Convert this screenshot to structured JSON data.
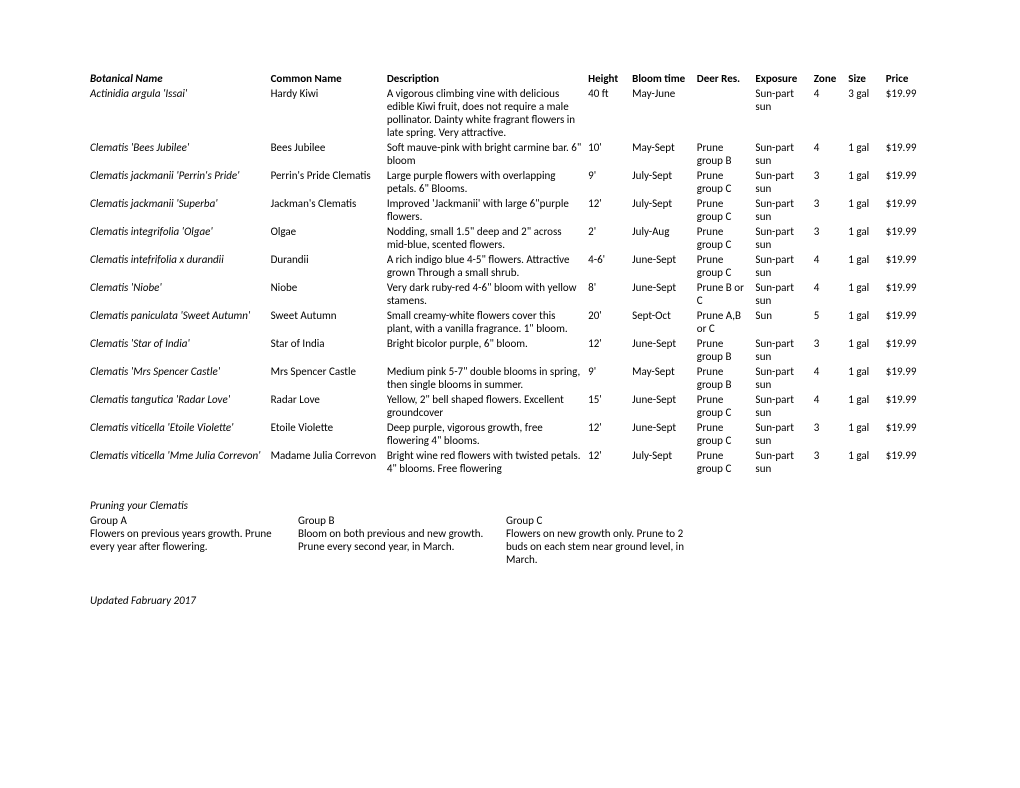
{
  "columns": {
    "botanical": "Botanical Name",
    "common": "Common Name",
    "description": "Description",
    "height": "Height",
    "bloom": "Bloom time",
    "deer": "Deer Res.",
    "exposure": "Exposure",
    "zone": "Zone",
    "size": "Size",
    "price": "Price"
  },
  "rows": [
    {
      "botanical": "Actinidia argula 'Issai'",
      "common": "Hardy Kiwi",
      "desc": "A vigorous climbing vine with delicious edible Kiwi fruit, does not require a male pollinator. Dainty white fragrant flowers in late spring. Very attractive.",
      "height": "40 ft",
      "bloom": "May-June",
      "deer": "",
      "exposure": "Sun-part sun",
      "zone": "4",
      "size": "3 gal",
      "price": "$19.99"
    },
    {
      "botanical": "Clematis 'Bees Jubilee'",
      "common": "Bees Jubilee",
      "desc": "Soft mauve-pink with bright carmine bar. 6\" bloom",
      "height": "10'",
      "bloom": "May-Sept",
      "deer": "Prune group B",
      "exposure": "Sun-part sun",
      "zone": "4",
      "size": "1 gal",
      "price": "$19.99"
    },
    {
      "botanical": "Clematis jackmanii 'Perrin's Pride'",
      "common": "Perrin's Pride Clematis",
      "desc": "Large purple flowers with overlapping petals. 6\" Blooms.",
      "height": "9'",
      "bloom": "July-Sept",
      "deer": "Prune group C",
      "exposure": "Sun-part sun",
      "zone": "3",
      "size": "1 gal",
      "price": "$19.99"
    },
    {
      "botanical": "Clematis jackmanii 'Superba'",
      "common": "Jackman's Clematis",
      "desc": "Improved 'Jackmanii' with large 6\"purple flowers.",
      "height": "12'",
      "bloom": "July-Sept",
      "deer": "Prune group C",
      "exposure": "Sun-part sun",
      "zone": "3",
      "size": "1 gal",
      "price": "$19.99"
    },
    {
      "botanical": " Clematis integrifolia 'Olgae'",
      "common": "Olgae",
      "desc": "Nodding, small 1.5\" deep and 2\" across mid-blue, scented flowers.",
      "height": "2'",
      "bloom": "July-Aug",
      "deer": "Prune group C",
      "exposure": "Sun-part sun",
      "zone": "3",
      "size": "1 gal",
      "price": "$19.99"
    },
    {
      "botanical": "Clematis intefrifolia x durandii",
      "common": "Durandii",
      "desc": "A rich indigo blue 4-5\" flowers. Attractive grown Through a small shrub.",
      "height": "4-6'",
      "bloom": "June-Sept",
      "deer": "Prune group C",
      "exposure": "Sun-part sun",
      "zone": "4",
      "size": "1 gal",
      "price": "$19.99"
    },
    {
      "botanical": "Clematis 'Niobe'",
      "common": "Niobe",
      "desc": "Very dark ruby-red 4-6\" bloom with yellow stamens.",
      "height": "8'",
      "bloom": "June-Sept",
      "deer": "Prune B or C",
      "exposure": "Sun-part sun",
      "zone": "4",
      "size": "1 gal",
      "price": "$19.99"
    },
    {
      "botanical": "Clematis paniculata 'Sweet Autumn'",
      "common": "Sweet Autumn",
      "desc": "Small creamy-white flowers cover this plant, with a vanilla fragrance. 1\" bloom.",
      "height": "20'",
      "bloom": "Sept-Oct",
      "deer": "Prune A,B or C",
      "exposure": "Sun",
      "zone": "5",
      "size": "1 gal",
      "price": "$19.99"
    },
    {
      "botanical": "Clematis 'Star of India'",
      "common": "Star of India",
      "desc": "Bright bicolor purple, 6\" bloom.",
      "height": "12'",
      "bloom": "June-Sept",
      "deer": "Prune group B",
      "exposure": "Sun-part sun",
      "zone": "3",
      "size": "1 gal",
      "price": "$19.99"
    },
    {
      "botanical": "Clematis 'Mrs Spencer Castle'",
      "common": "Mrs Spencer Castle",
      "desc": "Medium pink 5-7\" double blooms in spring, then single blooms in summer.",
      "height": "9'",
      "bloom": "May-Sept",
      "deer": "Prune group B",
      "exposure": "Sun-part sun",
      "zone": "4",
      "size": "1 gal",
      "price": "$19.99"
    },
    {
      "botanical": "Clematis tangutica 'Radar Love'",
      "common": "Radar Love",
      "desc": "Yellow, 2\" bell shaped flowers. Excellent groundcover",
      "height": "15'",
      "bloom": "June-Sept",
      "deer": "Prune group C",
      "exposure": "Sun-part sun",
      "zone": "4",
      "size": "1 gal",
      "price": "$19.99"
    },
    {
      "botanical": "Clematis viticella 'Etoile Violette'",
      "common": "Etoile Violette",
      "desc": "Deep purple, vigorous growth, free flowering 4\" blooms.",
      "height": "12'",
      "bloom": "June-Sept",
      "deer": "Prune group C",
      "exposure": "Sun-part sun",
      "zone": "3",
      "size": "1 gal",
      "price": "$19.99"
    },
    {
      "botanical": "Clematis viticella 'Mme Julia Correvon'",
      "common": "Madame Julia Correvon",
      "desc": "Bright wine red flowers with twisted petals. 4\" blooms. Free flowering",
      "height": "12'",
      "bloom": "July-Sept",
      "deer": "Prune group C",
      "exposure": "Sun-part sun",
      "zone": "3",
      "size": "1 gal",
      "price": "$19.99"
    }
  ],
  "pruning": {
    "title": "Pruning your Clematis",
    "groups": [
      {
        "head": "Group A",
        "text": "Flowers on previous years growth. Prune every year after flowering."
      },
      {
        "head": "Group B",
        "text": "Bloom on both previous and new growth. Prune every second year, in March."
      },
      {
        "head": "Group C",
        "text": "Flowers on new growth only. Prune to 2 buds on each stem near ground level, in March."
      }
    ]
  },
  "updated": "Updated Fabruary 2017"
}
